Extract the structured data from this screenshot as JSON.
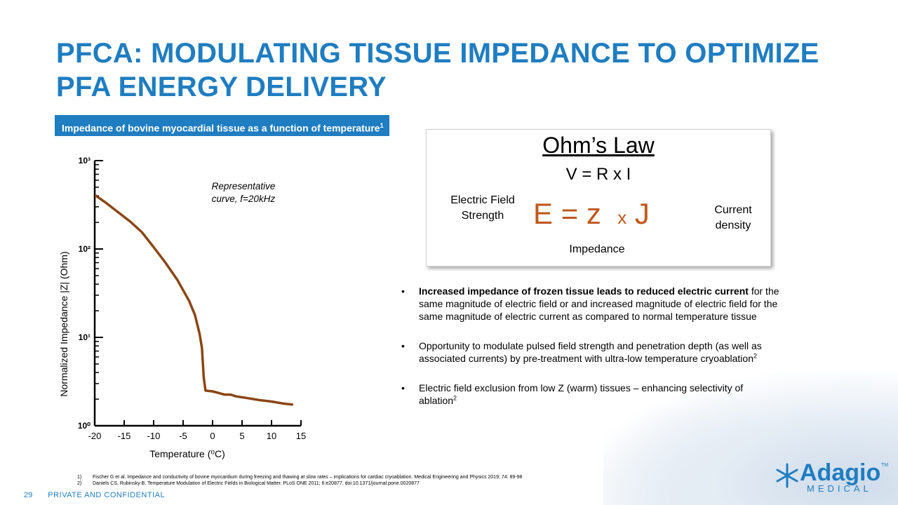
{
  "slide": {
    "title": "PFCA: MODULATING TISSUE IMPEDANCE TO OPTIMIZE PFA ENERGY DELIVERY",
    "page_number": "29",
    "confidential_label": "PRIVATE AND CONFIDENTIAL"
  },
  "chart_panel": {
    "header": "Impedance of bovine myocardial tissue as a function of temperature",
    "header_sup": "1"
  },
  "chart_data": {
    "type": "line",
    "title": "",
    "xlabel": "Temperature (⁰C)",
    "ylabel": "Normalized Impedance |Z| (Ohm)",
    "xlim": [
      -20,
      15
    ],
    "ylim": [
      1,
      1000
    ],
    "yscale": "log",
    "xticks": [
      -20,
      -15,
      -10,
      -5,
      0,
      5,
      10,
      15
    ],
    "yticks": [
      {
        "value": 1,
        "label": "10⁰"
      },
      {
        "value": 10,
        "label": "10¹"
      },
      {
        "value": 100,
        "label": "10²"
      },
      {
        "value": 1000,
        "label": "10³"
      }
    ],
    "annotation": "Representative curve, f=20kHz",
    "grid": false,
    "color": "#8b4513",
    "series": [
      {
        "x": [
          -19.8,
          -18,
          -16,
          -14,
          -12,
          -10,
          -8,
          -6,
          -4,
          -3,
          -2.2,
          -1.8,
          -1.5,
          -1.2,
          0,
          1,
          2,
          3,
          4,
          6,
          8,
          10,
          12,
          13.5
        ],
        "y": [
          400,
          330,
          260,
          205,
          155,
          105,
          70,
          45,
          26,
          18,
          11,
          7.5,
          3.5,
          2.5,
          2.45,
          2.35,
          2.25,
          2.25,
          2.15,
          2.05,
          1.95,
          1.88,
          1.78,
          1.74
        ]
      }
    ]
  },
  "ohm": {
    "title": "Ohm’s Law",
    "formula": "V = R x I",
    "left_label_line1": "Electric Field",
    "left_label_line2": "Strength",
    "eq_e": "E",
    "eq_equals": "=",
    "eq_z": "z",
    "eq_x": "x",
    "eq_j": "J",
    "right_label_line1": "Current",
    "right_label_line2": "density",
    "bottom_label": "Impedance",
    "eq_color": "#c0581c"
  },
  "bullets": [
    {
      "bold": "Increased impedance of frozen tissue leads to reduced electric current",
      "text": " for the same magnitude of electric field or and increased magnitude of electric field for the same magnitude of electric current as compared to normal temperature tissue",
      "sup": ""
    },
    {
      "bold": "",
      "text": "Opportunity to modulate pulsed field strength and penetration depth (as well as associated currents) by pre-treatment with ultra-low temperature cryoablation",
      "sup": "2"
    },
    {
      "bold": "",
      "text": "Electric field exclusion from low Z (warm) tissues – enhancing selectivity of ablation",
      "sup": "2"
    }
  ],
  "references": [
    {
      "num": "1)",
      "text": "Fischer G et al. Impedance and conductivity of bovine myocardium during freezing and thawing at slow rates – implications for cardiac cryoablation. Medical Engineering and Physics 2019; 74: 89-98"
    },
    {
      "num": "2)",
      "text": "Daniels CS, Rubinsky B. Temperature Modulation of Electric Fields in Biological Matter. PLoS ONE 2011; 6:e20877. doi:10.1371/journal.pone.0020877"
    }
  ],
  "logo": {
    "name": "Adagio",
    "tm": "TM",
    "subtitle": "MEDICAL",
    "color": "#1f7dc1"
  },
  "colors": {
    "brand_blue": "#1f7dc1",
    "curve_brown": "#8b4513"
  }
}
